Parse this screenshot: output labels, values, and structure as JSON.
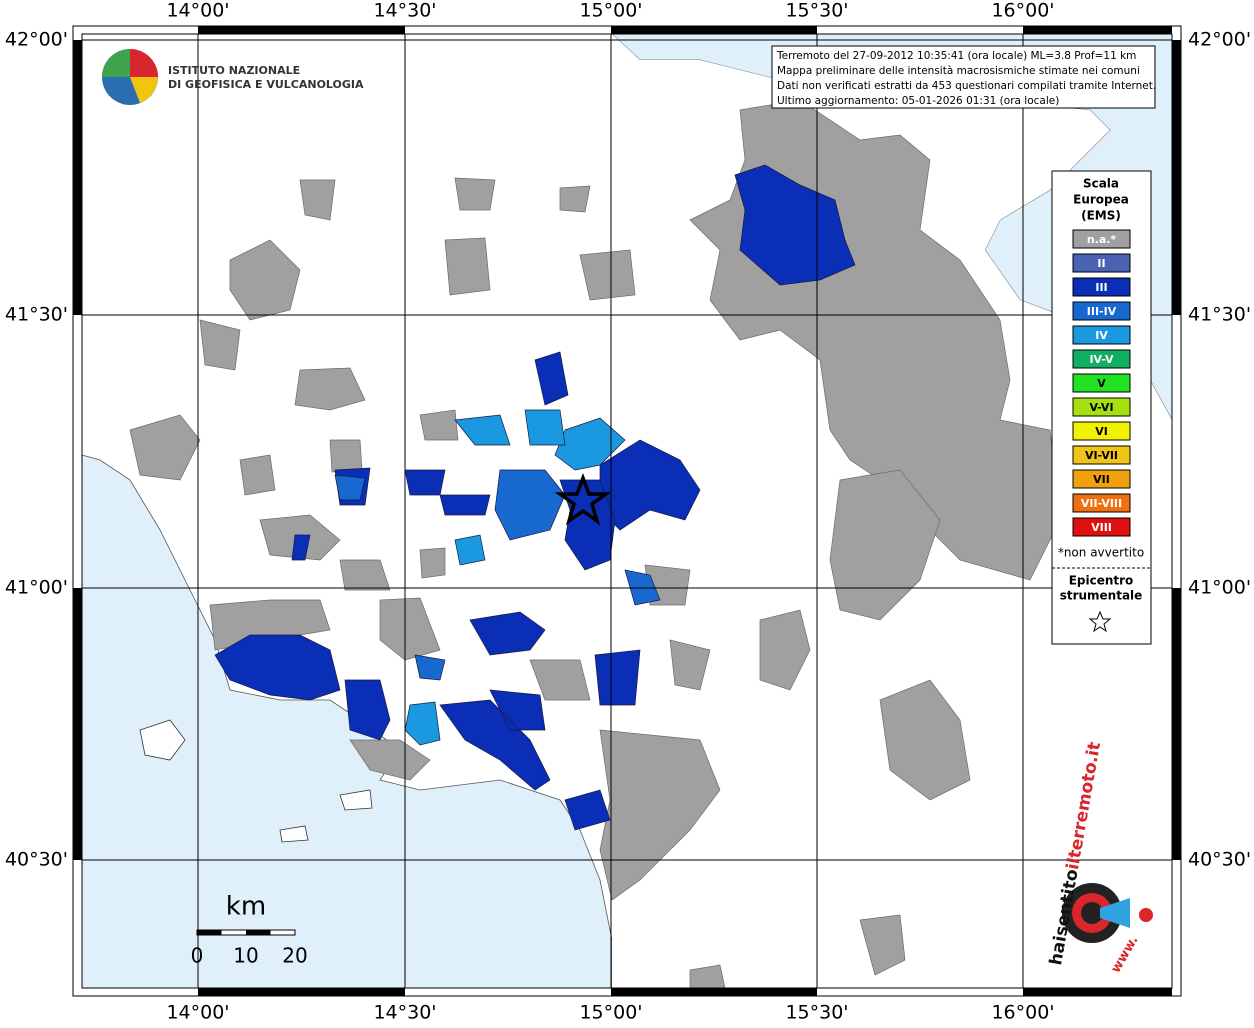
{
  "header": {
    "lines": [
      "Terremoto del 27-09-2012 10:35:41 (ora locale) ML=3.8 Prof=11 km",
      "Mappa preliminare delle intensità macrosismiche stimate nei comuni",
      "Dati non verificati estratti da 453 questionari compilati tramite Internet.",
      "Ultimo aggiornamento: 05-01-2026 01:31 (ora locale)"
    ]
  },
  "logo": {
    "lines": [
      "ISTITUTO NAZIONALE",
      "DI GEOFISICA E VULCANOLOGIA"
    ]
  },
  "axes": {
    "longitudes": [
      "14°00'",
      "14°30'",
      "15°00'",
      "15°30'",
      "16°00'"
    ],
    "latitudes": [
      "42°00'",
      "41°30'",
      "41°00'",
      "40°30'"
    ]
  },
  "legend": {
    "title": [
      "Scala",
      "Europea",
      "(EMS)"
    ],
    "classes": [
      {
        "label": "n.a.*",
        "color": "#a0a0a0"
      },
      {
        "label": "II",
        "color": "#4a62b4"
      },
      {
        "label": "III",
        "color": "#0a2eb6"
      },
      {
        "label": "III-IV",
        "color": "#1768cf"
      },
      {
        "label": "IV",
        "color": "#1a98e0"
      },
      {
        "label": "IV-V",
        "color": "#10ae62"
      },
      {
        "label": "V",
        "color": "#22e022"
      },
      {
        "label": "V-VI",
        "color": "#a6e010"
      },
      {
        "label": "VI",
        "color": "#f2f200"
      },
      {
        "label": "VI-VII",
        "color": "#f2c418"
      },
      {
        "label": "VII",
        "color": "#f2a010"
      },
      {
        "label": "VII-VIII",
        "color": "#f07010"
      },
      {
        "label": "VIII",
        "color": "#e01010"
      }
    ],
    "note": "*non avvertito",
    "epicenter": [
      "Epicentro",
      "strumentale"
    ]
  },
  "scale_bar": {
    "unit": "km",
    "labels": [
      "0",
      "10",
      "20"
    ]
  },
  "badge": {
    "part1": "haisentito",
    "part2": "ilterremoto.it",
    "www": "www."
  }
}
